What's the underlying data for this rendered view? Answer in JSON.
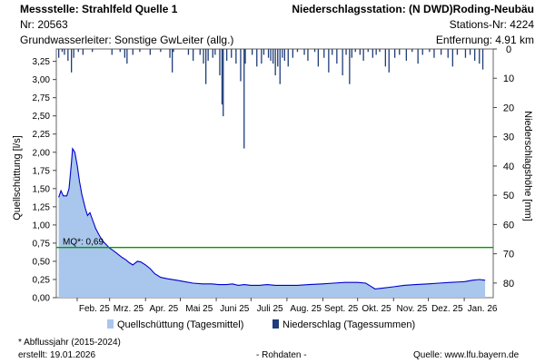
{
  "header": {
    "left": {
      "station_label": "Messstelle: Strahlfeld Quelle 1",
      "nr": "Nr: 20563",
      "aquifer": "Grundwasserleiter: Sonstige GwLeiter (allg.)"
    },
    "right": {
      "precip_station": "Niederschlagsstation: (N DWD)Roding-Neubäu",
      "station_nr": "Stations-Nr: 4224",
      "distance": "Entfernung: 4.91 km"
    }
  },
  "chart_data": {
    "type": "area",
    "ylabel_left": "Quellschüttung [l/s]",
    "ylabel_right": "Niederschlagshöhe [mm]",
    "y_left_ticks": [
      "0,00",
      "0,25",
      "0,50",
      "0,75",
      "1,00",
      "1,25",
      "1,50",
      "1,75",
      "2,00",
      "2,25",
      "2,50",
      "2,75",
      "3,00",
      "3,25"
    ],
    "y_left_lim": [
      0,
      3.42
    ],
    "y_right_ticks": [
      "0",
      "10",
      "20",
      "30",
      "40",
      "50",
      "60",
      "70",
      "80"
    ],
    "y_right_lim": [
      0,
      85
    ],
    "x_ticks": [
      "Feb. 25",
      "Mrz. 25",
      "Apr. 25",
      "Mai 25",
      "Juni 25",
      "Juli 25",
      "Aug. 25",
      "Sept. 25",
      "Okt. 25",
      "Nov. 25",
      "Dez. 25",
      "Jan. 26"
    ],
    "x_start": "2025-01-14",
    "x_end": "2026-01-26",
    "discharge": {
      "name": "Quellschüttung (Tagesmittel)",
      "color": "#0000cc",
      "fill": "#a9c6ec",
      "points": [
        [
          "2025-01-16",
          1.38
        ],
        [
          "2025-01-18",
          1.47
        ],
        [
          "2025-01-20",
          1.4
        ],
        [
          "2025-01-23",
          1.4
        ],
        [
          "2025-01-25",
          1.5
        ],
        [
          "2025-01-27",
          1.85
        ],
        [
          "2025-01-28",
          2.05
        ],
        [
          "2025-01-30",
          2.0
        ],
        [
          "2025-02-01",
          1.82
        ],
        [
          "2025-02-03",
          1.6
        ],
        [
          "2025-02-05",
          1.42
        ],
        [
          "2025-02-08",
          1.23
        ],
        [
          "2025-02-10",
          1.13
        ],
        [
          "2025-02-12",
          1.17
        ],
        [
          "2025-02-14",
          1.08
        ],
        [
          "2025-02-17",
          0.95
        ],
        [
          "2025-02-20",
          0.86
        ],
        [
          "2025-02-23",
          0.78
        ],
        [
          "2025-02-26",
          0.73
        ],
        [
          "2025-03-01",
          0.68
        ],
        [
          "2025-03-04",
          0.65
        ],
        [
          "2025-03-08",
          0.6
        ],
        [
          "2025-03-12",
          0.55
        ],
        [
          "2025-03-15",
          0.52
        ],
        [
          "2025-03-18",
          0.48
        ],
        [
          "2025-03-21",
          0.45
        ],
        [
          "2025-03-25",
          0.5
        ],
        [
          "2025-03-28",
          0.49
        ],
        [
          "2025-04-01",
          0.45
        ],
        [
          "2025-04-05",
          0.4
        ],
        [
          "2025-04-09",
          0.33
        ],
        [
          "2025-04-14",
          0.28
        ],
        [
          "2025-04-20",
          0.26
        ],
        [
          "2025-04-28",
          0.24
        ],
        [
          "2025-05-05",
          0.22
        ],
        [
          "2025-05-12",
          0.2
        ],
        [
          "2025-05-20",
          0.19
        ],
        [
          "2025-05-28",
          0.19
        ],
        [
          "2025-06-03",
          0.18
        ],
        [
          "2025-06-10",
          0.18
        ],
        [
          "2025-06-15",
          0.19
        ],
        [
          "2025-06-20",
          0.17
        ],
        [
          "2025-06-25",
          0.18
        ],
        [
          "2025-07-01",
          0.17
        ],
        [
          "2025-07-08",
          0.17
        ],
        [
          "2025-07-15",
          0.18
        ],
        [
          "2025-07-22",
          0.17
        ],
        [
          "2025-08-01",
          0.17
        ],
        [
          "2025-08-10",
          0.17
        ],
        [
          "2025-08-20",
          0.18
        ],
        [
          "2025-09-01",
          0.19
        ],
        [
          "2025-09-10",
          0.2
        ],
        [
          "2025-09-20",
          0.21
        ],
        [
          "2025-10-01",
          0.21
        ],
        [
          "2025-10-08",
          0.2
        ],
        [
          "2025-10-12",
          0.16
        ],
        [
          "2025-10-16",
          0.12
        ],
        [
          "2025-10-22",
          0.13
        ],
        [
          "2025-11-01",
          0.15
        ],
        [
          "2025-11-10",
          0.17
        ],
        [
          "2025-11-20",
          0.18
        ],
        [
          "2025-12-01",
          0.19
        ],
        [
          "2025-12-10",
          0.2
        ],
        [
          "2025-12-20",
          0.21
        ],
        [
          "2026-01-01",
          0.22
        ],
        [
          "2026-01-08",
          0.24
        ],
        [
          "2026-01-14",
          0.25
        ],
        [
          "2026-01-19",
          0.24
        ]
      ]
    },
    "precipitation": {
      "name": "Niederschlag (Tagessummen)",
      "color": "#1f3d7a",
      "points": [
        [
          "2025-01-16",
          3
        ],
        [
          "2025-01-19",
          1
        ],
        [
          "2025-01-21",
          2
        ],
        [
          "2025-01-24",
          4
        ],
        [
          "2025-01-27",
          8
        ],
        [
          "2025-01-29",
          3
        ],
        [
          "2025-02-02",
          1
        ],
        [
          "2025-02-06",
          2
        ],
        [
          "2025-02-14",
          1
        ],
        [
          "2025-03-03",
          2
        ],
        [
          "2025-03-10",
          1
        ],
        [
          "2025-03-14",
          3
        ],
        [
          "2025-03-16",
          5
        ],
        [
          "2025-03-21",
          2
        ],
        [
          "2025-03-27",
          1
        ],
        [
          "2025-04-05",
          2
        ],
        [
          "2025-04-14",
          1
        ],
        [
          "2025-04-22",
          3
        ],
        [
          "2025-04-24",
          8
        ],
        [
          "2025-04-25",
          1
        ],
        [
          "2025-05-08",
          2
        ],
        [
          "2025-05-12",
          4
        ],
        [
          "2025-05-18",
          2
        ],
        [
          "2025-05-21",
          5
        ],
        [
          "2025-05-23",
          12
        ],
        [
          "2025-05-25",
          4
        ],
        [
          "2025-05-29",
          3
        ],
        [
          "2025-05-31",
          2
        ],
        [
          "2025-06-04",
          9
        ],
        [
          "2025-06-06",
          19
        ],
        [
          "2025-06-07",
          23
        ],
        [
          "2025-06-10",
          4
        ],
        [
          "2025-06-14",
          3
        ],
        [
          "2025-06-18",
          5
        ],
        [
          "2025-06-22",
          11
        ],
        [
          "2025-06-25",
          34
        ],
        [
          "2025-06-26",
          5
        ],
        [
          "2025-07-02",
          2
        ],
        [
          "2025-07-06",
          6
        ],
        [
          "2025-07-10",
          5
        ],
        [
          "2025-07-12",
          2
        ],
        [
          "2025-07-16",
          3
        ],
        [
          "2025-07-18",
          4
        ],
        [
          "2025-07-20",
          5
        ],
        [
          "2025-07-22",
          9
        ],
        [
          "2025-07-24",
          6
        ],
        [
          "2025-07-26",
          12
        ],
        [
          "2025-07-28",
          3
        ],
        [
          "2025-07-30",
          4
        ],
        [
          "2025-08-02",
          6
        ],
        [
          "2025-08-06",
          3
        ],
        [
          "2025-08-10",
          1
        ],
        [
          "2025-08-16",
          2
        ],
        [
          "2025-08-19",
          4
        ],
        [
          "2025-08-25",
          1
        ],
        [
          "2025-08-28",
          6
        ],
        [
          "2025-09-02",
          3
        ],
        [
          "2025-09-06",
          8
        ],
        [
          "2025-09-09",
          2
        ],
        [
          "2025-09-13",
          5
        ],
        [
          "2025-09-18",
          9
        ],
        [
          "2025-09-21",
          2
        ],
        [
          "2025-09-24",
          12
        ],
        [
          "2025-09-26",
          3
        ],
        [
          "2025-09-29",
          1
        ],
        [
          "2025-10-03",
          2
        ],
        [
          "2025-10-06",
          4
        ],
        [
          "2025-10-10",
          1
        ],
        [
          "2025-10-14",
          3
        ],
        [
          "2025-10-17",
          2
        ],
        [
          "2025-10-20",
          1
        ],
        [
          "2025-10-25",
          6
        ],
        [
          "2025-10-28",
          8
        ],
        [
          "2025-11-02",
          3
        ],
        [
          "2025-11-06",
          2
        ],
        [
          "2025-11-12",
          4
        ],
        [
          "2025-11-17",
          1
        ],
        [
          "2025-11-22",
          5
        ],
        [
          "2025-11-26",
          2
        ],
        [
          "2025-12-02",
          1
        ],
        [
          "2025-12-06",
          3
        ],
        [
          "2025-12-12",
          2
        ],
        [
          "2025-12-18",
          3
        ],
        [
          "2025-12-22",
          6
        ],
        [
          "2025-12-26",
          2
        ],
        [
          "2026-01-02",
          3
        ],
        [
          "2026-01-06",
          2
        ],
        [
          "2026-01-10",
          4
        ],
        [
          "2026-01-14",
          5
        ],
        [
          "2026-01-17",
          7
        ]
      ]
    },
    "mq": {
      "label": "MQ*: 0,69",
      "value": 0.69,
      "color": "#009900"
    }
  },
  "footer": {
    "note": "* Abflussjahr (2015-2024)",
    "created": "erstellt:  19.01.2026",
    "raw": "- Rohdaten -",
    "source": "Quelle: www.lfu.bayern.de"
  }
}
